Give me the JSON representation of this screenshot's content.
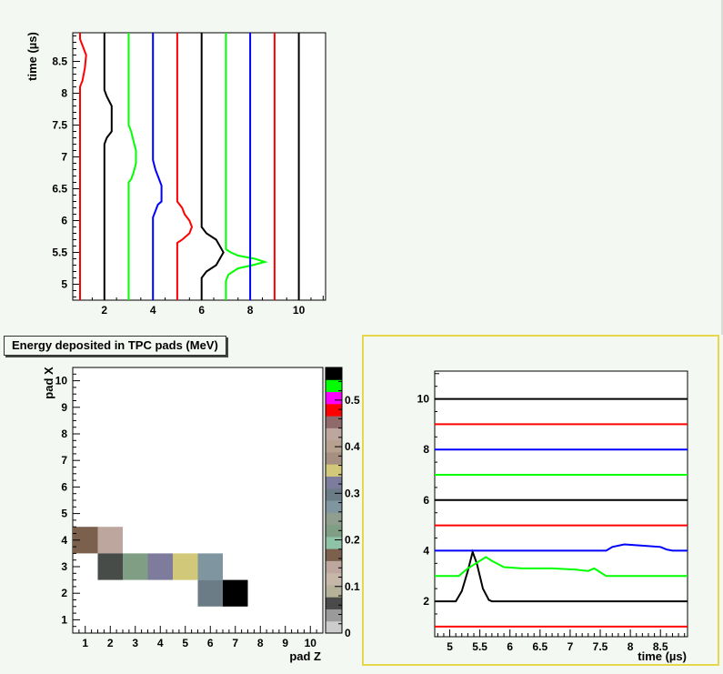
{
  "colors": {
    "background": "#f4f8f3",
    "highlight_border": "#e6d84a"
  },
  "panel_label": "Energy deposited in TPC pads (MeV)",
  "chart_data": [
    {
      "type": "line",
      "name": "signals-vs-time",
      "ylabel": "time (µs)",
      "xlim": [
        0.7,
        11.1
      ],
      "ylim": [
        4.75,
        8.95
      ],
      "xticks": [
        2,
        4,
        6,
        8,
        10
      ],
      "yticks": [
        5,
        5.5,
        6,
        6.5,
        7,
        7.5,
        8,
        8.5
      ],
      "series": [
        {
          "offset": 1,
          "color": "#ff0000",
          "points": [
            [
              0,
              4.75
            ],
            [
              0,
              8.1
            ],
            [
              0.1,
              8.2
            ],
            [
              0.2,
              8.4
            ],
            [
              0.25,
              8.6
            ],
            [
              0.1,
              8.75
            ],
            [
              0,
              8.85
            ],
            [
              0,
              8.95
            ]
          ]
        },
        {
          "offset": 2,
          "color": "#000000",
          "points": [
            [
              0,
              4.75
            ],
            [
              0,
              7.2
            ],
            [
              0.1,
              7.3
            ],
            [
              0.3,
              7.4
            ],
            [
              0.3,
              7.8
            ],
            [
              0.1,
              7.95
            ],
            [
              0,
              8.05
            ],
            [
              0,
              8.95
            ]
          ]
        },
        {
          "offset": 3,
          "color": "#00ff00",
          "points": [
            [
              0,
              4.75
            ],
            [
              0,
              6.6
            ],
            [
              0.1,
              6.65
            ],
            [
              0.2,
              6.75
            ],
            [
              0.3,
              6.9
            ],
            [
              0.3,
              7.1
            ],
            [
              0.2,
              7.25
            ],
            [
              0.1,
              7.4
            ],
            [
              0,
              7.5
            ],
            [
              0,
              8.95
            ]
          ]
        },
        {
          "offset": 4,
          "color": "#0000ff",
          "points": [
            [
              0,
              4.75
            ],
            [
              0,
              6.05
            ],
            [
              0.1,
              6.15
            ],
            [
              0.2,
              6.25
            ],
            [
              0.35,
              6.3
            ],
            [
              0.35,
              6.55
            ],
            [
              0.2,
              6.7
            ],
            [
              0.1,
              6.8
            ],
            [
              0,
              6.95
            ],
            [
              0,
              8.95
            ]
          ]
        },
        {
          "offset": 5,
          "color": "#ff0000",
          "points": [
            [
              0,
              4.75
            ],
            [
              0,
              5.65
            ],
            [
              0.2,
              5.7
            ],
            [
              0.5,
              5.8
            ],
            [
              0.6,
              5.9
            ],
            [
              0.5,
              6.0
            ],
            [
              0.3,
              6.1
            ],
            [
              0.2,
              6.2
            ],
            [
              0,
              6.3
            ],
            [
              0,
              8.95
            ]
          ]
        },
        {
          "offset": 6,
          "color": "#000000",
          "points": [
            [
              0,
              4.75
            ],
            [
              0,
              5.1
            ],
            [
              0.2,
              5.2
            ],
            [
              0.6,
              5.3
            ],
            [
              0.9,
              5.5
            ],
            [
              0.6,
              5.7
            ],
            [
              0.2,
              5.8
            ],
            [
              0,
              5.9
            ],
            [
              0,
              8.95
            ]
          ]
        },
        {
          "offset": 7,
          "color": "#00ff00",
          "points": [
            [
              0,
              4.75
            ],
            [
              0,
              5.05
            ],
            [
              0.1,
              5.15
            ],
            [
              0.5,
              5.25
            ],
            [
              1.1,
              5.3
            ],
            [
              1.6,
              5.35
            ],
            [
              1.2,
              5.4
            ],
            [
              0.5,
              5.45
            ],
            [
              0.2,
              5.5
            ],
            [
              0,
              5.55
            ],
            [
              0,
              8.95
            ]
          ]
        },
        {
          "offset": 8,
          "color": "#0000ff",
          "points": [
            [
              0,
              4.75
            ],
            [
              0,
              8.95
            ]
          ]
        },
        {
          "offset": 9,
          "color": "#ff0000",
          "points": [
            [
              0,
              4.75
            ],
            [
              0,
              8.95
            ]
          ]
        },
        {
          "offset": 10,
          "color": "#000000",
          "points": [
            [
              0,
              4.75
            ],
            [
              0,
              8.95
            ]
          ]
        }
      ]
    },
    {
      "type": "heatmap",
      "name": "pad-energy",
      "xlabel": "pad Z",
      "ylabel": "pad X",
      "xlim": [
        0.5,
        10.5
      ],
      "ylim": [
        0.5,
        10.5
      ],
      "xticks": [
        1,
        2,
        3,
        4,
        5,
        6,
        7,
        8,
        9,
        10
      ],
      "yticks": [
        1,
        2,
        3,
        4,
        5,
        6,
        7,
        8,
        9,
        10
      ],
      "cells": [
        {
          "x": 1,
          "y": 4,
          "value": 0.19,
          "color": "#7b614d"
        },
        {
          "x": 2,
          "y": 4,
          "value": 0.14,
          "color": "#bda69e"
        },
        {
          "x": 2,
          "y": 3,
          "value": 0.06,
          "color": "#484c48"
        },
        {
          "x": 3,
          "y": 3,
          "value": 0.21,
          "color": "#7f9e84"
        },
        {
          "x": 4,
          "y": 3,
          "value": 0.3,
          "color": "#7e7c9d"
        },
        {
          "x": 5,
          "y": 3,
          "value": 0.33,
          "color": "#d2c87a"
        },
        {
          "x": 6,
          "y": 3,
          "value": 0.27,
          "color": "#7f96a0"
        },
        {
          "x": 6,
          "y": 2,
          "value": 0.28,
          "color": "#6b7c87"
        },
        {
          "x": 7,
          "y": 2,
          "value": 0.56,
          "color": "#000000"
        }
      ],
      "palette_ticks": [
        0,
        0.1,
        0.2,
        0.3,
        0.4,
        0.5
      ],
      "palette_range": [
        0,
        0.57
      ],
      "palette_colors": [
        "#cccccc",
        "#9a9a9a",
        "#4a4a4a",
        "#b6b29a",
        "#c6b7a8",
        "#bda69e",
        "#7b614d",
        "#8fc3a8",
        "#7f9e84",
        "#8f9e8e",
        "#7f96a0",
        "#6b7c87",
        "#7e7c9d",
        "#d2c87a",
        "#a68f80",
        "#b6a08e",
        "#bda69e",
        "#8f6a6a",
        "#ff0000",
        "#ff00ff",
        "#00ff00",
        "#000000"
      ]
    },
    {
      "type": "line",
      "name": "signals-vs-time-horizontal",
      "xlabel": "time (µs)",
      "xlim": [
        4.75,
        8.95
      ],
      "ylim": [
        0.6,
        11.1
      ],
      "xticks": [
        5,
        5.5,
        6,
        6.5,
        7,
        7.5,
        8,
        8.5
      ],
      "yticks": [
        2,
        4,
        6,
        8,
        10
      ],
      "series": [
        {
          "offset": 1,
          "color": "#ff0000",
          "points": [
            [
              4.75,
              0
            ],
            [
              8.95,
              0
            ]
          ]
        },
        {
          "offset": 2,
          "color": "#000000",
          "points": [
            [
              4.75,
              0
            ],
            [
              5.1,
              0
            ],
            [
              5.2,
              0.4
            ],
            [
              5.3,
              1.2
            ],
            [
              5.38,
              1.95
            ],
            [
              5.45,
              1.5
            ],
            [
              5.55,
              0.5
            ],
            [
              5.65,
              0.05
            ],
            [
              5.7,
              0
            ],
            [
              8.95,
              0
            ]
          ]
        },
        {
          "offset": 3,
          "color": "#00ff00",
          "points": [
            [
              4.75,
              0
            ],
            [
              5.15,
              0
            ],
            [
              5.3,
              0.3
            ],
            [
              5.5,
              0.6
            ],
            [
              5.6,
              0.75
            ],
            [
              5.7,
              0.6
            ],
            [
              5.9,
              0.35
            ],
            [
              6.2,
              0.3
            ],
            [
              6.7,
              0.3
            ],
            [
              7.1,
              0.25
            ],
            [
              7.3,
              0.2
            ],
            [
              7.4,
              0.3
            ],
            [
              7.5,
              0.15
            ],
            [
              7.6,
              0
            ],
            [
              8.95,
              0
            ]
          ]
        },
        {
          "offset": 4,
          "color": "#0000ff",
          "points": [
            [
              4.75,
              0
            ],
            [
              7.6,
              0
            ],
            [
              7.7,
              0.15
            ],
            [
              7.9,
              0.25
            ],
            [
              8.2,
              0.2
            ],
            [
              8.5,
              0.15
            ],
            [
              8.6,
              0.05
            ],
            [
              8.7,
              0
            ],
            [
              8.95,
              0
            ]
          ]
        },
        {
          "offset": 5,
          "color": "#ff0000",
          "points": [
            [
              4.75,
              0
            ],
            [
              8.95,
              0
            ]
          ]
        },
        {
          "offset": 6,
          "color": "#000000",
          "points": [
            [
              4.75,
              0
            ],
            [
              8.95,
              0
            ]
          ]
        },
        {
          "offset": 7,
          "color": "#00ff00",
          "points": [
            [
              4.75,
              0
            ],
            [
              8.95,
              0
            ]
          ]
        },
        {
          "offset": 8,
          "color": "#0000ff",
          "points": [
            [
              4.75,
              0
            ],
            [
              8.95,
              0
            ]
          ]
        },
        {
          "offset": 9,
          "color": "#ff0000",
          "points": [
            [
              4.75,
              0
            ],
            [
              8.95,
              0
            ]
          ]
        },
        {
          "offset": 10,
          "color": "#000000",
          "points": [
            [
              4.75,
              0
            ],
            [
              8.95,
              0
            ]
          ]
        }
      ]
    }
  ]
}
